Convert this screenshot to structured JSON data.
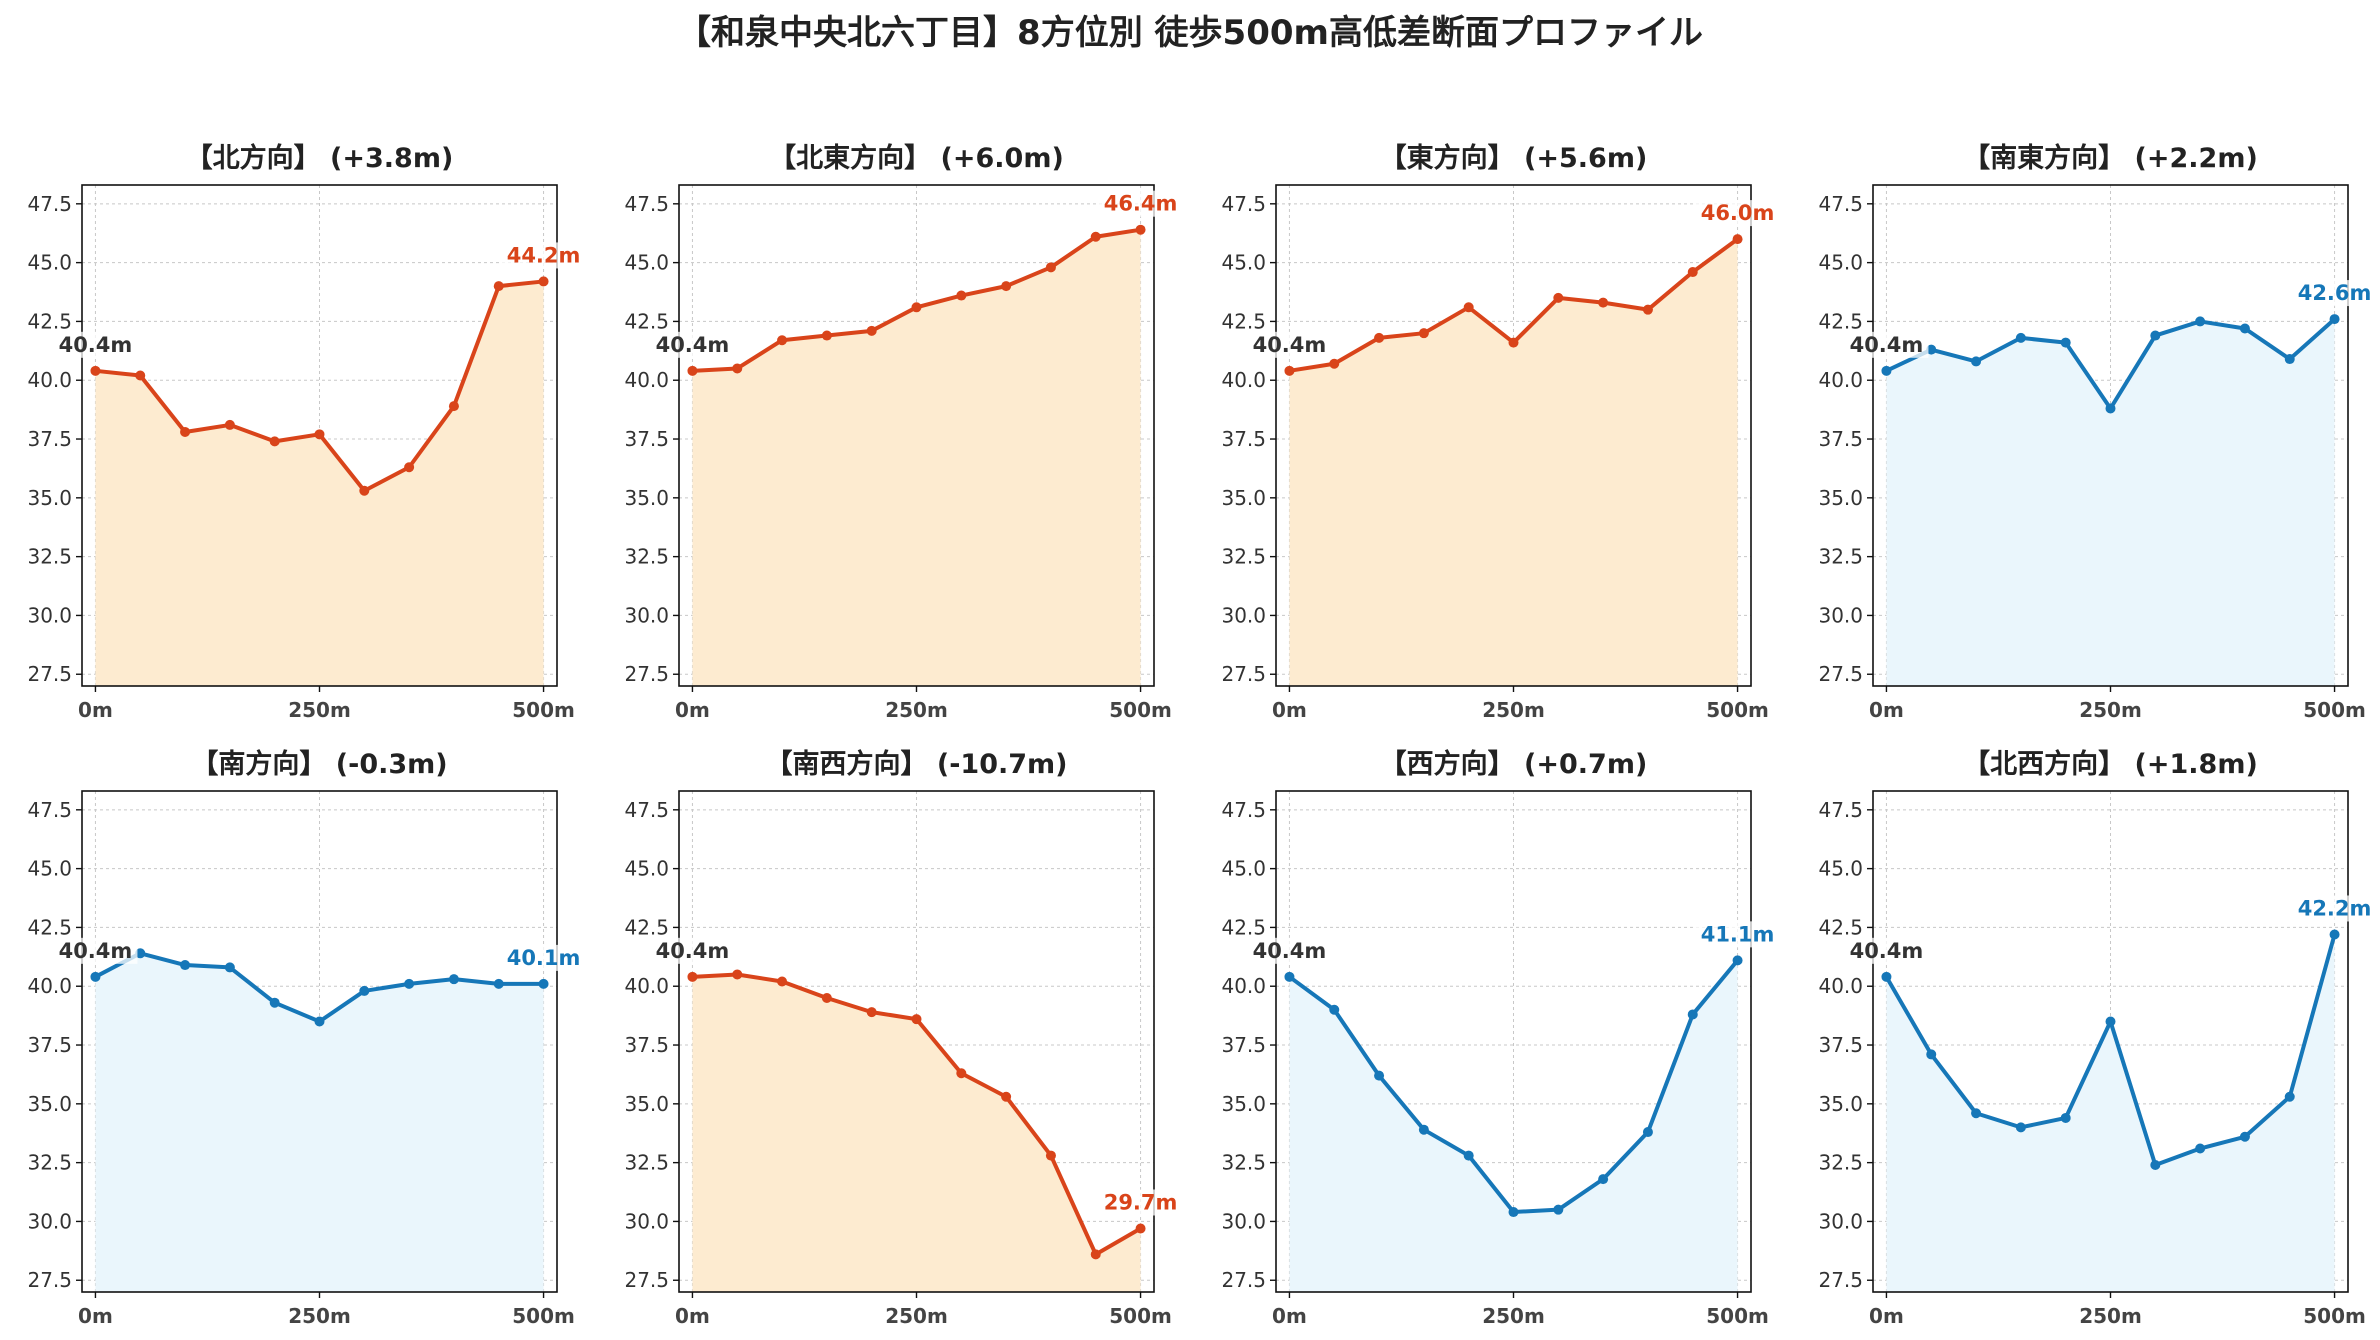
{
  "figure_title": "【和泉中央北六丁目】8方位別 徒歩500m高低差断面プロファイル",
  "colors": {
    "up_line": "#d9441a",
    "up_fill": "#fdebd0",
    "down_line": "#1677b8",
    "down_fill": "#eaf6fc",
    "start_label": "#333333",
    "grid": "#c8c8c8"
  },
  "chart_data": [
    {
      "type": "line",
      "title": "【北方向】 (+3.8m)",
      "theme": "up",
      "x": [
        0,
        50,
        100,
        150,
        200,
        250,
        300,
        350,
        400,
        450,
        500
      ],
      "y": [
        40.4,
        40.2,
        37.8,
        38.1,
        37.4,
        37.7,
        35.3,
        36.3,
        38.9,
        44.0,
        44.2
      ],
      "start_label": "40.4m",
      "end_label": "44.2m",
      "xticks": [
        "0m",
        "250m",
        "500m"
      ],
      "yticks": [
        "27.5",
        "30.0",
        "32.5",
        "35.0",
        "37.5",
        "40.0",
        "42.5",
        "45.0",
        "47.5"
      ],
      "ylim": [
        27.0,
        48.3
      ],
      "xlim": [
        -15,
        515
      ],
      "grid": true
    },
    {
      "type": "line",
      "title": "【北東方向】 (+6.0m)",
      "theme": "up",
      "x": [
        0,
        50,
        100,
        150,
        200,
        250,
        300,
        350,
        400,
        450,
        500
      ],
      "y": [
        40.4,
        40.5,
        41.7,
        41.9,
        42.1,
        43.1,
        43.6,
        44.0,
        44.8,
        46.1,
        46.4
      ],
      "start_label": "40.4m",
      "end_label": "46.4m",
      "xticks": [
        "0m",
        "250m",
        "500m"
      ],
      "yticks": [
        "27.5",
        "30.0",
        "32.5",
        "35.0",
        "37.5",
        "40.0",
        "42.5",
        "45.0",
        "47.5"
      ],
      "ylim": [
        27.0,
        48.3
      ],
      "xlim": [
        -15,
        515
      ],
      "grid": true
    },
    {
      "type": "line",
      "title": "【東方向】 (+5.6m)",
      "theme": "up",
      "x": [
        0,
        50,
        100,
        150,
        200,
        250,
        300,
        350,
        400,
        450,
        500
      ],
      "y": [
        40.4,
        40.7,
        41.8,
        42.0,
        43.1,
        41.6,
        43.5,
        43.3,
        43.0,
        44.6,
        46.0
      ],
      "start_label": "40.4m",
      "end_label": "46.0m",
      "xticks": [
        "0m",
        "250m",
        "500m"
      ],
      "yticks": [
        "27.5",
        "30.0",
        "32.5",
        "35.0",
        "37.5",
        "40.0",
        "42.5",
        "45.0",
        "47.5"
      ],
      "ylim": [
        27.0,
        48.3
      ],
      "xlim": [
        -15,
        515
      ],
      "grid": true
    },
    {
      "type": "line",
      "title": "【南東方向】 (+2.2m)",
      "theme": "down",
      "x": [
        0,
        50,
        100,
        150,
        200,
        250,
        300,
        350,
        400,
        450,
        500
      ],
      "y": [
        40.4,
        41.3,
        40.8,
        41.8,
        41.6,
        38.8,
        41.9,
        42.5,
        42.2,
        40.9,
        42.6
      ],
      "start_label": "40.4m",
      "end_label": "42.6m",
      "xticks": [
        "0m",
        "250m",
        "500m"
      ],
      "yticks": [
        "27.5",
        "30.0",
        "32.5",
        "35.0",
        "37.5",
        "40.0",
        "42.5",
        "45.0",
        "47.5"
      ],
      "ylim": [
        27.0,
        48.3
      ],
      "xlim": [
        -15,
        515
      ],
      "grid": true
    },
    {
      "type": "line",
      "title": "【南方向】 (-0.3m)",
      "theme": "down",
      "x": [
        0,
        50,
        100,
        150,
        200,
        250,
        300,
        350,
        400,
        450,
        500
      ],
      "y": [
        40.4,
        41.4,
        40.9,
        40.8,
        39.3,
        38.5,
        39.8,
        40.1,
        40.3,
        40.1,
        40.1
      ],
      "start_label": "40.4m",
      "end_label": "40.1m",
      "xticks": [
        "0m",
        "250m",
        "500m"
      ],
      "yticks": [
        "27.5",
        "30.0",
        "32.5",
        "35.0",
        "37.5",
        "40.0",
        "42.5",
        "45.0",
        "47.5"
      ],
      "ylim": [
        27.0,
        48.3
      ],
      "xlim": [
        -15,
        515
      ],
      "grid": true
    },
    {
      "type": "line",
      "title": "【南西方向】 (-10.7m)",
      "theme": "up",
      "x": [
        0,
        50,
        100,
        150,
        200,
        250,
        300,
        350,
        400,
        450,
        500
      ],
      "y": [
        40.4,
        40.5,
        40.2,
        39.5,
        38.9,
        38.6,
        36.3,
        35.3,
        32.8,
        28.6,
        29.7
      ],
      "start_label": "40.4m",
      "end_label": "29.7m",
      "xticks": [
        "0m",
        "250m",
        "500m"
      ],
      "yticks": [
        "27.5",
        "30.0",
        "32.5",
        "35.0",
        "37.5",
        "40.0",
        "42.5",
        "45.0",
        "47.5"
      ],
      "ylim": [
        27.0,
        48.3
      ],
      "xlim": [
        -15,
        515
      ],
      "grid": true
    },
    {
      "type": "line",
      "title": "【西方向】 (+0.7m)",
      "theme": "down",
      "x": [
        0,
        50,
        100,
        150,
        200,
        250,
        300,
        350,
        400,
        450,
        500
      ],
      "y": [
        40.4,
        39.0,
        36.2,
        33.9,
        32.8,
        30.4,
        30.5,
        31.8,
        33.8,
        38.8,
        41.1
      ],
      "start_label": "40.4m",
      "end_label": "41.1m",
      "xticks": [
        "0m",
        "250m",
        "500m"
      ],
      "yticks": [
        "27.5",
        "30.0",
        "32.5",
        "35.0",
        "37.5",
        "40.0",
        "42.5",
        "45.0",
        "47.5"
      ],
      "ylim": [
        27.0,
        48.3
      ],
      "xlim": [
        -15,
        515
      ],
      "grid": true
    },
    {
      "type": "line",
      "title": "【北西方向】 (+1.8m)",
      "theme": "down",
      "x": [
        0,
        50,
        100,
        150,
        200,
        250,
        300,
        350,
        400,
        450,
        500
      ],
      "y": [
        40.4,
        37.1,
        34.6,
        34.0,
        34.4,
        38.5,
        32.4,
        33.1,
        33.6,
        35.3,
        42.2
      ],
      "start_label": "40.4m",
      "end_label": "42.2m",
      "xticks": [
        "0m",
        "250m",
        "500m"
      ],
      "yticks": [
        "27.5",
        "30.0",
        "32.5",
        "35.0",
        "37.5",
        "40.0",
        "42.5",
        "45.0",
        "47.5"
      ],
      "ylim": [
        27.0,
        48.3
      ],
      "xlim": [
        -15,
        515
      ],
      "grid": true
    }
  ]
}
